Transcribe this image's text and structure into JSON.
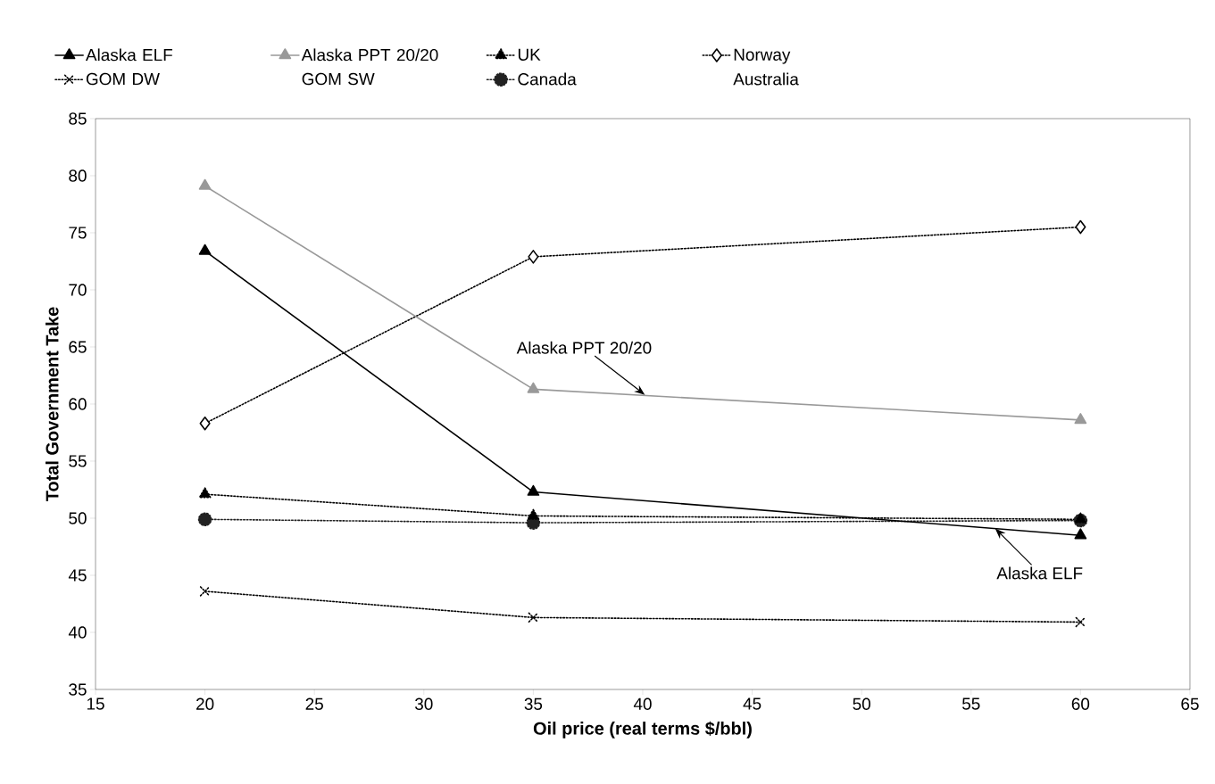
{
  "chart_data": {
    "type": "line",
    "xlabel": "Oil price (real terms $/bbl)",
    "ylabel": "Total Government Take",
    "x": [
      20,
      35,
      60
    ],
    "series": [
      {
        "name": "Alaska ELF",
        "color": "#000000",
        "values": [
          73.4,
          52.3,
          48.5
        ],
        "marker": "triangle",
        "line_style": "solid"
      },
      {
        "name": "Alaska PPT 20/20",
        "color": "#999999",
        "values": [
          79.1,
          61.3,
          58.6
        ],
        "marker": "triangle",
        "line_style": "solid"
      },
      {
        "name": "UK",
        "color": "#000000",
        "values": [
          52.1,
          50.2,
          49.9
        ],
        "marker": "triangle",
        "line_style": "dotted"
      },
      {
        "name": "Norway",
        "color": "#000000",
        "values": [
          58.3,
          72.9,
          75.5
        ],
        "marker": "diamond",
        "line_style": "dotted"
      },
      {
        "name": "GOM DW",
        "color": "#000000",
        "values": [
          43.6,
          41.3,
          40.9
        ],
        "marker": "cross",
        "line_style": "dotted"
      },
      {
        "name": "GOM SW",
        "values": [
          null,
          null,
          null
        ]
      },
      {
        "name": "Canada",
        "color": "#222222",
        "values": [
          49.9,
          49.6,
          49.8
        ],
        "marker": "circle",
        "line_style": "dotted"
      },
      {
        "name": "Australia",
        "values": [
          null,
          null,
          null
        ]
      }
    ],
    "annotations": [
      {
        "text": "Alaska PPT 20/20",
        "x": 40.1,
        "y": 60.8
      },
      {
        "text": "Alaska ELF",
        "x": 56.1,
        "y": 49.1
      }
    ],
    "xlim": [
      15,
      65
    ],
    "ylim": [
      35,
      85
    ],
    "xticks": [
      15,
      20,
      25,
      30,
      35,
      40,
      45,
      50,
      55,
      60,
      65
    ],
    "yticks": [
      35,
      40,
      45,
      50,
      55,
      60,
      65,
      70,
      75,
      80,
      85
    ],
    "grid": false,
    "legend": "top"
  }
}
